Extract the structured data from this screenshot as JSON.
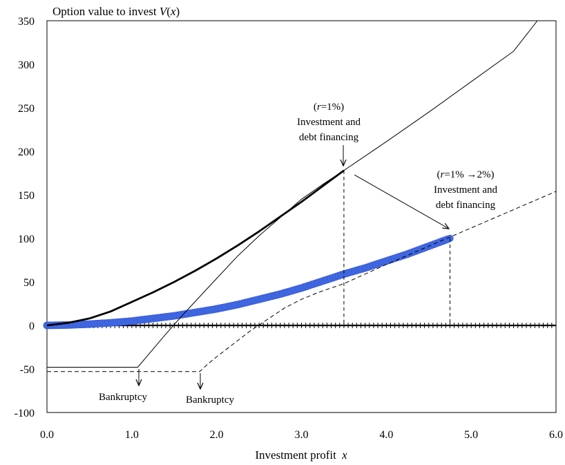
{
  "chart_data": {
    "type": "line",
    "title": "",
    "ylabel_prefix": "Option value to invest ",
    "ylabel_symbol": "V",
    "ylabel_arg_open": "(",
    "ylabel_arg_var": "x",
    "ylabel_arg_close": ")",
    "xlabel_text": "Investment profit ",
    "xlabel_var": "x",
    "xlim": [
      0,
      6
    ],
    "ylim": [
      -100,
      350
    ],
    "x_ticks": [
      "0.0",
      "1.0",
      "2.0",
      "3.0",
      "4.0",
      "5.0",
      "6.0"
    ],
    "y_ticks": [
      "-100",
      "-50",
      "0",
      "50",
      "100",
      "150",
      "200",
      "250",
      "300",
      "350"
    ],
    "grid": false,
    "series": [
      {
        "style": "thick-solid",
        "color": "#000000",
        "x": [
          0,
          0.25,
          0.5,
          0.75,
          1.0,
          1.25,
          1.5,
          1.75,
          2.0,
          2.25,
          2.5,
          2.75,
          3.0,
          3.25,
          3.5
        ],
        "y": [
          0,
          3,
          8,
          16,
          27,
          38,
          50,
          63,
          77,
          92,
          108,
          125,
          142,
          160,
          178
        ]
      },
      {
        "style": "thin-solid",
        "color": "#000000",
        "x": [
          0,
          1.07,
          1.2,
          1.4,
          1.6,
          1.8,
          2.0,
          2.25,
          2.5,
          2.75,
          3.0,
          3.25,
          3.5,
          4.0,
          4.5,
          5.0,
          5.5,
          5.78
        ],
        "y": [
          -48,
          -48,
          -33,
          -10,
          12,
          33,
          54,
          80,
          103,
          124,
          145,
          162,
          178,
          211,
          245,
          280,
          315,
          350
        ]
      },
      {
        "style": "markers",
        "color": "#4169E1",
        "x": [
          0,
          0.25,
          0.5,
          0.75,
          1.0,
          1.25,
          1.5,
          1.75,
          2.0,
          2.25,
          2.5,
          2.75,
          3.0,
          3.25,
          3.5,
          3.75,
          4.0,
          4.25,
          4.5,
          4.75
        ],
        "y": [
          0,
          0.5,
          1.5,
          3,
          5,
          8,
          11,
          15,
          19,
          24,
          30,
          36,
          43,
          51,
          59,
          66,
          74,
          82,
          91,
          100
        ]
      },
      {
        "style": "dashed",
        "color": "#000000",
        "x": [
          0,
          1.8,
          1.9,
          2.0,
          2.2,
          2.4,
          2.6,
          2.8,
          3.0,
          3.2,
          3.5,
          4.0,
          4.5,
          5.0,
          5.5,
          6.0
        ],
        "y": [
          -53,
          -53,
          -44,
          -36,
          -21,
          -6,
          7,
          20,
          30,
          38,
          48,
          70,
          91,
          112,
          133,
          154
        ]
      }
    ],
    "vlines": [
      {
        "x": 3.5,
        "y_top": 178
      },
      {
        "x": 4.75,
        "y_top": 100
      }
    ],
    "annotations": {
      "a1_paren_open": "(",
      "a1_r": "r",
      "a1_paren_rest": "=1%)",
      "a1_line2": "Investment and",
      "a1_line3": "debt financing",
      "a2_paren_open": "(",
      "a2_r": "r",
      "a2_paren_rest": "=1% →2%)",
      "a2_line2": "Investment and",
      "a2_line3": "debt financing",
      "bankruptcy_1": "Bankruptcy",
      "bankruptcy_2": "Bankruptcy"
    }
  }
}
